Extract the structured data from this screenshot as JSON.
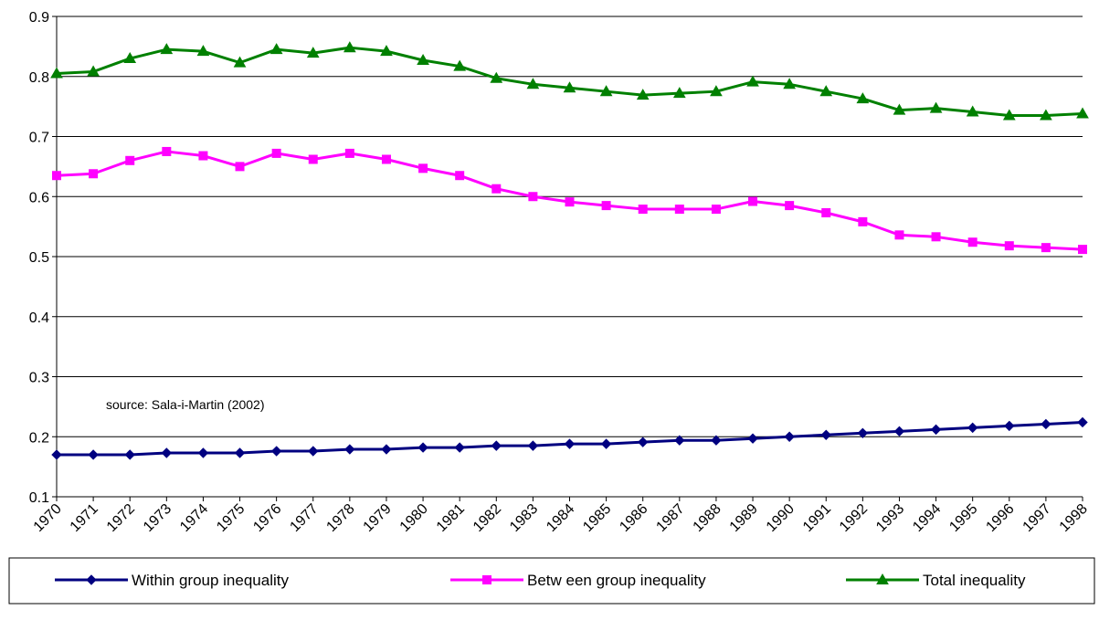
{
  "chart_data": {
    "type": "line",
    "title": "",
    "xlabel": "",
    "ylabel": "",
    "ylim": [
      0.1,
      0.9
    ],
    "yticks": [
      "0.1",
      "0.2",
      "0.3",
      "0.4",
      "0.5",
      "0.6",
      "0.7",
      "0.8",
      "0.9"
    ],
    "grid": "horizontal",
    "legend_position": "bottom",
    "annotation": "source: Sala-i-Martin (2002)",
    "categories": [
      "1970",
      "1971",
      "1972",
      "1973",
      "1974",
      "1975",
      "1976",
      "1977",
      "1978",
      "1979",
      "1980",
      "1981",
      "1982",
      "1983",
      "1984",
      "1985",
      "1986",
      "1987",
      "1988",
      "1989",
      "1990",
      "1991",
      "1992",
      "1993",
      "1994",
      "1995",
      "1996",
      "1997",
      "1998"
    ],
    "series": [
      {
        "name": "Within group inequality",
        "color": "#000080",
        "marker": "diamond",
        "values": [
          0.17,
          0.17,
          0.17,
          0.173,
          0.173,
          0.173,
          0.176,
          0.176,
          0.179,
          0.179,
          0.182,
          0.182,
          0.185,
          0.185,
          0.188,
          0.188,
          0.191,
          0.194,
          0.194,
          0.197,
          0.2,
          0.203,
          0.206,
          0.209,
          0.212,
          0.215,
          0.218,
          0.221,
          0.224
        ]
      },
      {
        "name": "Betw een group inequality",
        "color": "#ff00ff",
        "marker": "square",
        "values": [
          0.635,
          0.638,
          0.66,
          0.675,
          0.668,
          0.65,
          0.672,
          0.662,
          0.672,
          0.662,
          0.647,
          0.635,
          0.613,
          0.6,
          0.591,
          0.585,
          0.579,
          0.579,
          0.579,
          0.592,
          0.585,
          0.573,
          0.558,
          0.536,
          0.533,
          0.524,
          0.518,
          0.515,
          0.512
        ]
      },
      {
        "name": "Total inequality",
        "color": "#008000",
        "marker": "triangle",
        "values": [
          0.805,
          0.808,
          0.83,
          0.845,
          0.842,
          0.823,
          0.845,
          0.839,
          0.848,
          0.842,
          0.827,
          0.817,
          0.797,
          0.787,
          0.781,
          0.775,
          0.769,
          0.772,
          0.775,
          0.791,
          0.787,
          0.775,
          0.763,
          0.744,
          0.747,
          0.741,
          0.735,
          0.735,
          0.738
        ]
      }
    ]
  }
}
